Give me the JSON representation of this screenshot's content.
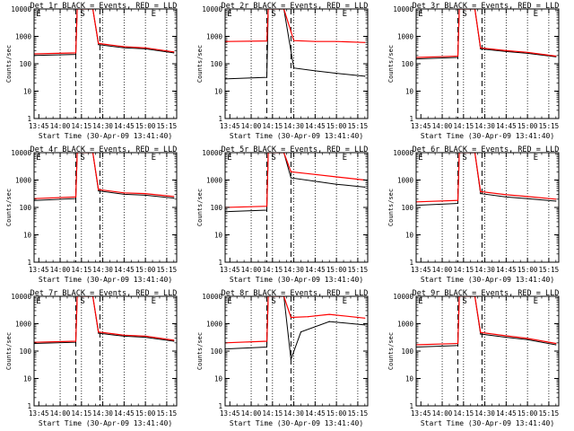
{
  "axis_defaults": {
    "y_label": "Counts/sec",
    "x_label_template": "Start Time (30-Apr-09 13:41:40)",
    "x_ticks": [
      "13:45",
      "14:00",
      "14:15",
      "14:30",
      "14:45",
      "15:00",
      "15:15"
    ],
    "y_ticks": [
      "1",
      "10",
      "100",
      "1000",
      "10000"
    ],
    "ylim": [
      1,
      10000
    ],
    "y_scale": "log",
    "xlim": [
      "13:41:40",
      "15:22:00"
    ]
  },
  "colors": {
    "events": "#000000",
    "lld": "#ff0000",
    "axes": "#000000"
  },
  "chart_data": [
    {
      "type": "line",
      "title": "Det 1r BLACK = Events, RED = LLD",
      "xlabel": "Start Time (30-Apr-09 13:41:40)",
      "ylabel": "Counts/sec",
      "ylim": [
        1,
        10000
      ],
      "y_scale": "log",
      "markers": {
        "E": "13:45",
        "S": "14:16",
        "E2": "15:06"
      },
      "dashed_times": [
        "14:11",
        "14:28"
      ],
      "dotted_times": [
        "14:00",
        "14:15",
        "14:30",
        "14:45",
        "15:00",
        "15:15"
      ],
      "series": [
        {
          "color": "black",
          "points": [
            [
              "13:42",
              200
            ],
            [
              "14:11",
              220
            ],
            [
              "14:12",
              10000
            ],
            [
              "14:23",
              10000
            ],
            [
              "14:27",
              500
            ],
            [
              "14:45",
              380
            ],
            [
              "15:00",
              350
            ],
            [
              "15:20",
              250
            ]
          ]
        },
        {
          "color": "red",
          "points": [
            [
              "13:42",
              230
            ],
            [
              "14:11",
              250
            ],
            [
              "14:12",
              10000
            ],
            [
              "14:23",
              10000
            ],
            [
              "14:27",
              550
            ],
            [
              "14:45",
              420
            ],
            [
              "15:00",
              380
            ],
            [
              "15:20",
              270
            ]
          ]
        }
      ]
    },
    {
      "type": "line",
      "title": "Det 2r BLACK = Events, RED = LLD",
      "xlabel": "Start Time (30-Apr-09 13:41:40)",
      "ylabel": "Counts/sec",
      "ylim": [
        1,
        10000
      ],
      "y_scale": "log",
      "markers": {
        "E": "13:45",
        "S": "14:16",
        "E2": "15:06"
      },
      "dashed_times": [
        "14:11",
        "14:28"
      ],
      "dotted_times": [
        "14:00",
        "14:15",
        "14:30",
        "14:45",
        "15:00",
        "15:15"
      ],
      "series": [
        {
          "color": "black",
          "points": [
            [
              "13:42",
              28
            ],
            [
              "14:11",
              32
            ],
            [
              "14:12",
              10000
            ],
            [
              "14:23",
              10000
            ],
            [
              "14:30",
              70
            ],
            [
              "14:45",
              55
            ],
            [
              "15:00",
              45
            ],
            [
              "15:20",
              35
            ]
          ]
        },
        {
          "color": "red",
          "points": [
            [
              "13:42",
              650
            ],
            [
              "14:11",
              680
            ],
            [
              "14:12",
              10000
            ],
            [
              "14:23",
              10000
            ],
            [
              "14:30",
              700
            ],
            [
              "14:45",
              650
            ],
            [
              "15:00",
              650
            ],
            [
              "15:20",
              600
            ]
          ]
        }
      ]
    },
    {
      "type": "line",
      "title": "Det 3r BLACK = Events, RED = LLD",
      "xlabel": "Start Time (30-Apr-09 13:41:40)",
      "ylabel": "Counts/sec",
      "ylim": [
        1,
        10000
      ],
      "y_scale": "log",
      "markers": {
        "E": "13:45",
        "S": "14:16",
        "E2": "15:06"
      },
      "dashed_times": [
        "14:11",
        "14:28"
      ],
      "dotted_times": [
        "14:00",
        "14:15",
        "14:30",
        "14:45",
        "15:00",
        "15:15"
      ],
      "series": [
        {
          "color": "black",
          "points": [
            [
              "13:42",
              150
            ],
            [
              "14:11",
              170
            ],
            [
              "14:12",
              10000
            ],
            [
              "14:23",
              10000
            ],
            [
              "14:27",
              350
            ],
            [
              "14:45",
              280
            ],
            [
              "15:00",
              240
            ],
            [
              "15:20",
              180
            ]
          ]
        },
        {
          "color": "red",
          "points": [
            [
              "13:42",
              170
            ],
            [
              "14:11",
              190
            ],
            [
              "14:12",
              10000
            ],
            [
              "14:23",
              10000
            ],
            [
              "14:27",
              380
            ],
            [
              "14:45",
              300
            ],
            [
              "15:00",
              260
            ],
            [
              "15:20",
              190
            ]
          ]
        }
      ]
    },
    {
      "type": "line",
      "title": "Det 4r BLACK = Events, RED = LLD",
      "xlabel": "Start Time (30-Apr-09 13:41:40)",
      "ylabel": "Counts/sec",
      "ylim": [
        1,
        10000
      ],
      "y_scale": "log",
      "markers": {
        "E": "13:45",
        "S": "14:16",
        "E2": "15:06"
      },
      "dashed_times": [
        "14:11",
        "14:28"
      ],
      "dotted_times": [
        "14:00",
        "14:15",
        "14:30",
        "14:45",
        "15:00",
        "15:15"
      ],
      "series": [
        {
          "color": "black",
          "points": [
            [
              "13:42",
              180
            ],
            [
              "14:11",
              210
            ],
            [
              "14:12",
              10000
            ],
            [
              "14:23",
              10000
            ],
            [
              "14:27",
              400
            ],
            [
              "14:45",
              300
            ],
            [
              "15:00",
              280
            ],
            [
              "15:20",
              220
            ]
          ]
        },
        {
          "color": "red",
          "points": [
            [
              "13:42",
              210
            ],
            [
              "14:11",
              240
            ],
            [
              "14:12",
              10000
            ],
            [
              "14:23",
              10000
            ],
            [
              "14:27",
              450
            ],
            [
              "14:45",
              340
            ],
            [
              "15:00",
              320
            ],
            [
              "15:20",
              250
            ]
          ]
        }
      ]
    },
    {
      "type": "line",
      "title": "Det 5r BLACK = Events, RED = LLD",
      "xlabel": "Start Time (30-Apr-09 13:41:40)",
      "ylabel": "Counts/sec",
      "ylim": [
        1,
        10000
      ],
      "y_scale": "log",
      "markers": {
        "E": "13:45",
        "S": "14:16",
        "E2": "15:06"
      },
      "dashed_times": [
        "14:11",
        "14:28"
      ],
      "dotted_times": [
        "14:00",
        "14:15",
        "14:30",
        "14:45",
        "15:00",
        "15:15"
      ],
      "series": [
        {
          "color": "black",
          "points": [
            [
              "13:42",
              70
            ],
            [
              "14:11",
              80
            ],
            [
              "14:12",
              10000
            ],
            [
              "14:23",
              10000
            ],
            [
              "14:28",
              1200
            ],
            [
              "14:45",
              900
            ],
            [
              "15:00",
              700
            ],
            [
              "15:20",
              550
            ]
          ]
        },
        {
          "color": "red",
          "points": [
            [
              "13:42",
              100
            ],
            [
              "14:11",
              110
            ],
            [
              "14:12",
              10000
            ],
            [
              "14:23",
              10000
            ],
            [
              "14:28",
              2000
            ],
            [
              "14:45",
              1600
            ],
            [
              "15:00",
              1300
            ],
            [
              "15:20",
              1000
            ]
          ]
        }
      ]
    },
    {
      "type": "line",
      "title": "Det 6r BLACK = Events, RED = LLD",
      "xlabel": "Start Time (30-Apr-09 13:41:40)",
      "ylabel": "Counts/sec",
      "ylim": [
        1,
        10000
      ],
      "y_scale": "log",
      "markers": {
        "E": "13:45",
        "S": "14:16",
        "E2": "15:06"
      },
      "dashed_times": [
        "14:11",
        "14:28"
      ],
      "dotted_times": [
        "14:00",
        "14:15",
        "14:30",
        "14:45",
        "15:00",
        "15:15"
      ],
      "series": [
        {
          "color": "black",
          "points": [
            [
              "13:42",
              120
            ],
            [
              "14:11",
              140
            ],
            [
              "14:12",
              10000
            ],
            [
              "14:23",
              10000
            ],
            [
              "14:27",
              320
            ],
            [
              "14:45",
              240
            ],
            [
              "15:00",
              210
            ],
            [
              "15:20",
              170
            ]
          ]
        },
        {
          "color": "red",
          "points": [
            [
              "13:42",
              160
            ],
            [
              "14:11",
              180
            ],
            [
              "14:12",
              10000
            ],
            [
              "14:23",
              10000
            ],
            [
              "14:27",
              380
            ],
            [
              "14:45",
              290
            ],
            [
              "15:00",
              250
            ],
            [
              "15:20",
              200
            ]
          ]
        }
      ]
    },
    {
      "type": "line",
      "title": "Det 7r BLACK = Events, RED = LLD",
      "xlabel": "Start Time (30-Apr-09 13:41:40)",
      "ylabel": "Counts/sec",
      "ylim": [
        1,
        10000
      ],
      "y_scale": "log",
      "markers": {
        "E": "13:45",
        "S": "14:16",
        "E2": "15:06"
      },
      "dashed_times": [
        "14:11",
        "14:28"
      ],
      "dotted_times": [
        "14:00",
        "14:15",
        "14:30",
        "14:45",
        "15:00",
        "15:15"
      ],
      "series": [
        {
          "color": "black",
          "points": [
            [
              "13:42",
              190
            ],
            [
              "14:11",
              210
            ],
            [
              "14:12",
              10000
            ],
            [
              "14:23",
              10000
            ],
            [
              "14:27",
              450
            ],
            [
              "14:45",
              350
            ],
            [
              "15:00",
              320
            ],
            [
              "15:20",
              230
            ]
          ]
        },
        {
          "color": "red",
          "points": [
            [
              "13:42",
              210
            ],
            [
              "14:11",
              230
            ],
            [
              "14:12",
              10000
            ],
            [
              "14:23",
              10000
            ],
            [
              "14:27",
              500
            ],
            [
              "14:45",
              380
            ],
            [
              "15:00",
              350
            ],
            [
              "15:20",
              250
            ]
          ]
        }
      ]
    },
    {
      "type": "line",
      "title": "Det 8r BLACK = Events, RED = LLD",
      "xlabel": "Start Time (30-Apr-09 13:41:40)",
      "ylabel": "Counts/sec",
      "ylim": [
        1,
        10000
      ],
      "y_scale": "log",
      "markers": {
        "E": "13:45",
        "S": "14:16",
        "E2": "15:06"
      },
      "dashed_times": [
        "14:11",
        "14:28"
      ],
      "dotted_times": [
        "14:00",
        "14:15",
        "14:30",
        "14:45",
        "15:00",
        "15:15"
      ],
      "series": [
        {
          "color": "black",
          "points": [
            [
              "13:42",
              120
            ],
            [
              "14:11",
              140
            ],
            [
              "14:12",
              10000
            ],
            [
              "14:23",
              10000
            ],
            [
              "14:28",
              50
            ],
            [
              "14:35",
              500
            ],
            [
              "14:55",
              1200
            ],
            [
              "15:20",
              900
            ]
          ]
        },
        {
          "color": "red",
          "points": [
            [
              "13:42",
              200
            ],
            [
              "14:11",
              230
            ],
            [
              "14:12",
              10000
            ],
            [
              "14:23",
              10000
            ],
            [
              "14:28",
              1700
            ],
            [
              "14:40",
              1800
            ],
            [
              "14:55",
              2200
            ],
            [
              "15:20",
              1600
            ]
          ]
        }
      ]
    },
    {
      "type": "line",
      "title": "Det 9r BLACK = Events, RED = LLD",
      "xlabel": "Start Time (30-Apr-09 13:41:40)",
      "ylabel": "Counts/sec",
      "ylim": [
        1,
        10000
      ],
      "y_scale": "log",
      "markers": {
        "E": "13:45",
        "S": "14:16",
        "E2": "15:06"
      },
      "dashed_times": [
        "14:11",
        "14:28"
      ],
      "dotted_times": [
        "14:00",
        "14:15",
        "14:30",
        "14:45",
        "15:00",
        "15:15"
      ],
      "series": [
        {
          "color": "black",
          "points": [
            [
              "13:42",
              140
            ],
            [
              "14:11",
              160
            ],
            [
              "14:12",
              10000
            ],
            [
              "14:23",
              10000
            ],
            [
              "14:27",
              420
            ],
            [
              "14:45",
              320
            ],
            [
              "15:00",
              260
            ],
            [
              "15:20",
              170
            ]
          ]
        },
        {
          "color": "red",
          "points": [
            [
              "13:42",
              170
            ],
            [
              "14:11",
              190
            ],
            [
              "14:12",
              10000
            ],
            [
              "14:23",
              10000
            ],
            [
              "14:27",
              480
            ],
            [
              "14:45",
              360
            ],
            [
              "15:00",
              290
            ],
            [
              "15:20",
              190
            ]
          ]
        }
      ]
    }
  ]
}
